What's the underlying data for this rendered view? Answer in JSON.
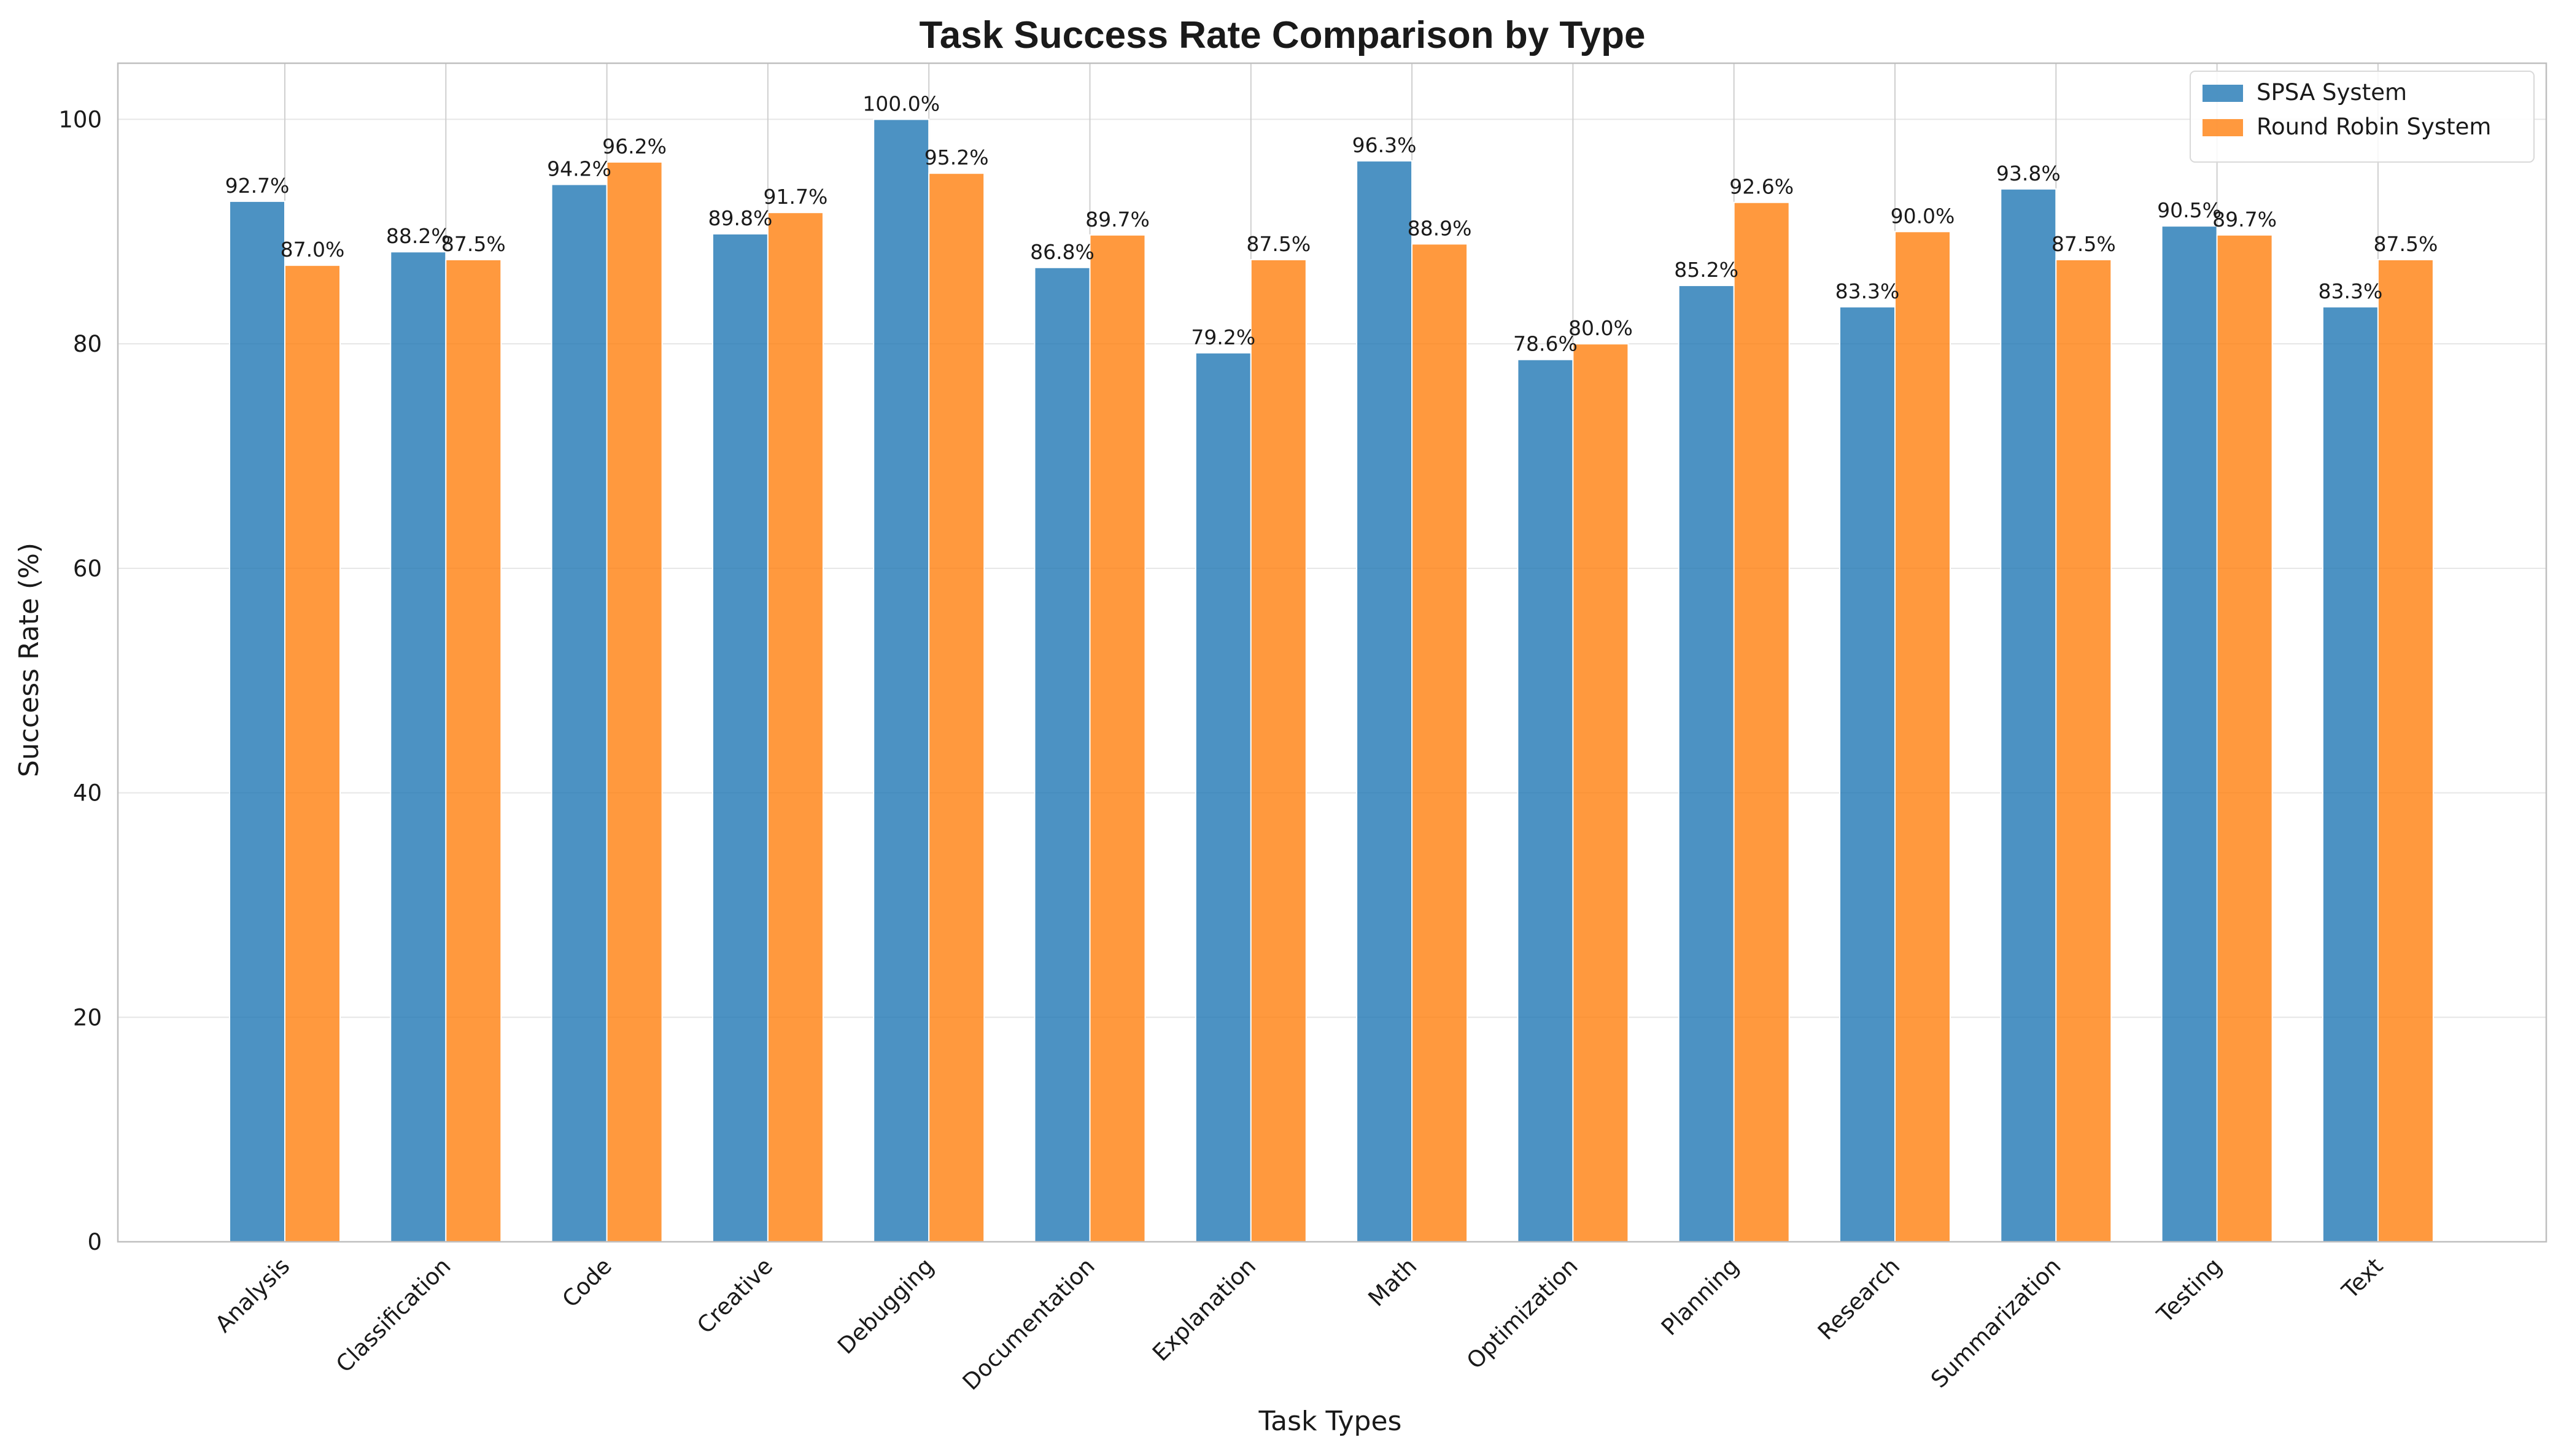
{
  "chart_data": {
    "type": "bar",
    "title": "Task Success Rate Comparison by Type",
    "xlabel": "Task Types",
    "ylabel": "Success Rate (%)",
    "ylim": [
      0,
      105
    ],
    "yticks": [
      0,
      20,
      40,
      60,
      80,
      100
    ],
    "grid": true,
    "legend_position": "top-right",
    "categories": [
      "Analysis",
      "Classification",
      "Code",
      "Creative",
      "Debugging",
      "Documentation",
      "Explanation",
      "Math",
      "Optimization",
      "Planning",
      "Research",
      "Summarization",
      "Testing",
      "Text"
    ],
    "series": [
      {
        "name": "SPSA System",
        "color": "#1f77b4",
        "values": [
          92.7,
          88.2,
          94.2,
          89.8,
          100.0,
          86.8,
          79.2,
          96.3,
          78.6,
          85.2,
          83.3,
          93.8,
          90.5,
          83.3
        ],
        "labels": [
          "92.7%",
          "88.2%",
          "94.2%",
          "89.8%",
          "100.0%",
          "86.8%",
          "79.2%",
          "96.3%",
          "78.6%",
          "85.2%",
          "83.3%",
          "93.8%",
          "90.5%",
          "83.3%"
        ]
      },
      {
        "name": "Round Robin System",
        "color": "#ff7f0e",
        "values": [
          87.0,
          87.5,
          96.2,
          91.7,
          95.2,
          89.7,
          87.5,
          88.9,
          80.0,
          92.6,
          90.0,
          87.5,
          89.7,
          87.5
        ],
        "labels": [
          "87.0%",
          "87.5%",
          "96.2%",
          "91.7%",
          "95.2%",
          "89.7%",
          "87.5%",
          "88.9%",
          "80.0%",
          "92.6%",
          "90.0%",
          "87.5%",
          "89.7%",
          "87.5%"
        ]
      }
    ]
  }
}
